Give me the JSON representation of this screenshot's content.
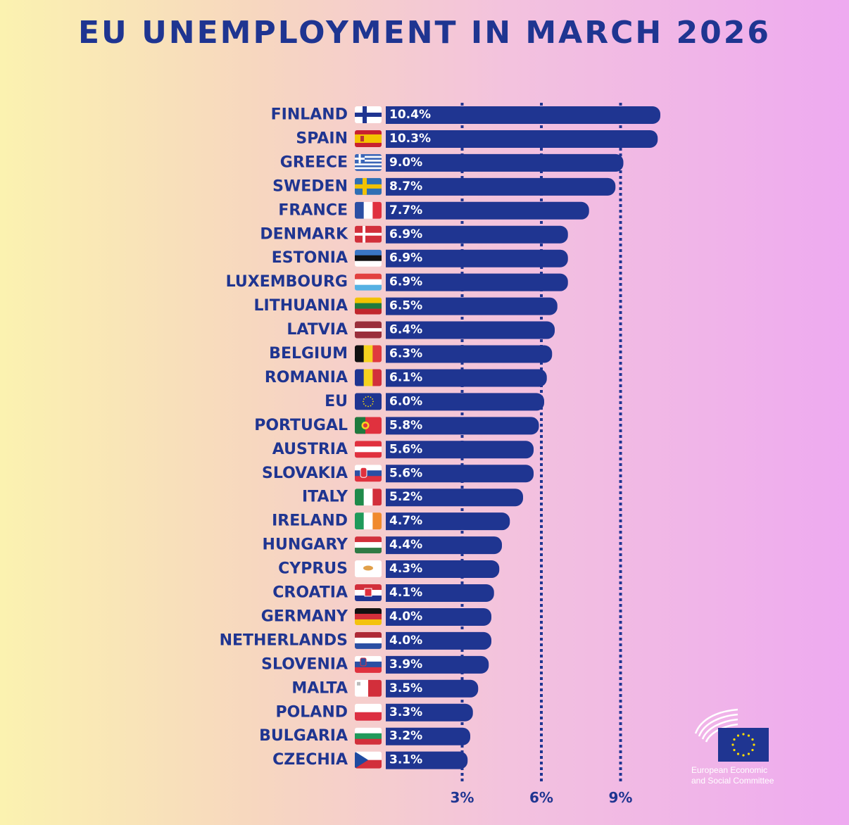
{
  "chart_data": {
    "type": "bar",
    "title": "EU UNEMPLOYMENT IN MARCH 2026",
    "orientation": "horizontal",
    "categories": [
      "FINLAND",
      "SPAIN",
      "GREECE",
      "SWEDEN",
      "FRANCE",
      "DENMARK",
      "ESTONIA",
      "LUXEMBOURG",
      "LITHUANIA",
      "LATVIA",
      "BELGIUM",
      "ROMANIA",
      "EU",
      "PORTUGAL",
      "AUSTRIA",
      "SLOVAKIA",
      "ITALY",
      "IRELAND",
      "HUNGARY",
      "CYPRUS",
      "CROATIA",
      "GERMANY",
      "NETHERLANDS",
      "SLOVENIA",
      "MALTA",
      "POLAND",
      "BULGARIA",
      "CZECHIA"
    ],
    "values": [
      10.4,
      10.3,
      9.0,
      8.7,
      7.7,
      6.9,
      6.9,
      6.9,
      6.5,
      6.4,
      6.3,
      6.1,
      6.0,
      5.8,
      5.6,
      5.6,
      5.2,
      4.7,
      4.4,
      4.3,
      4.1,
      4.0,
      4.0,
      3.9,
      3.5,
      3.3,
      3.2,
      3.1
    ],
    "value_labels": [
      "10.4%",
      "10.3%",
      "9.0%",
      "8.7%",
      "7.7%",
      "6.9%",
      "6.9%",
      "6.9%",
      "6.5%",
      "6.4%",
      "6.3%",
      "6.1%",
      "6.0%",
      "5.8%",
      "5.6%",
      "5.6%",
      "5.2%",
      "4.7%",
      "4.4%",
      "4.3%",
      "4.1%",
      "4.0%",
      "4.0%",
      "3.9%",
      "3.5%",
      "3.3%",
      "3.2%",
      "3.1%"
    ],
    "reference_lines": [
      3,
      6,
      9
    ],
    "reference_labels": [
      "3%",
      "6%",
      "9%"
    ],
    "grid": false,
    "legend": "none",
    "bar_color": "#1f3591",
    "text_color": "#1f3591"
  },
  "logo": {
    "text_line1": "European Economic",
    "text_line2": "and Social Committee"
  }
}
